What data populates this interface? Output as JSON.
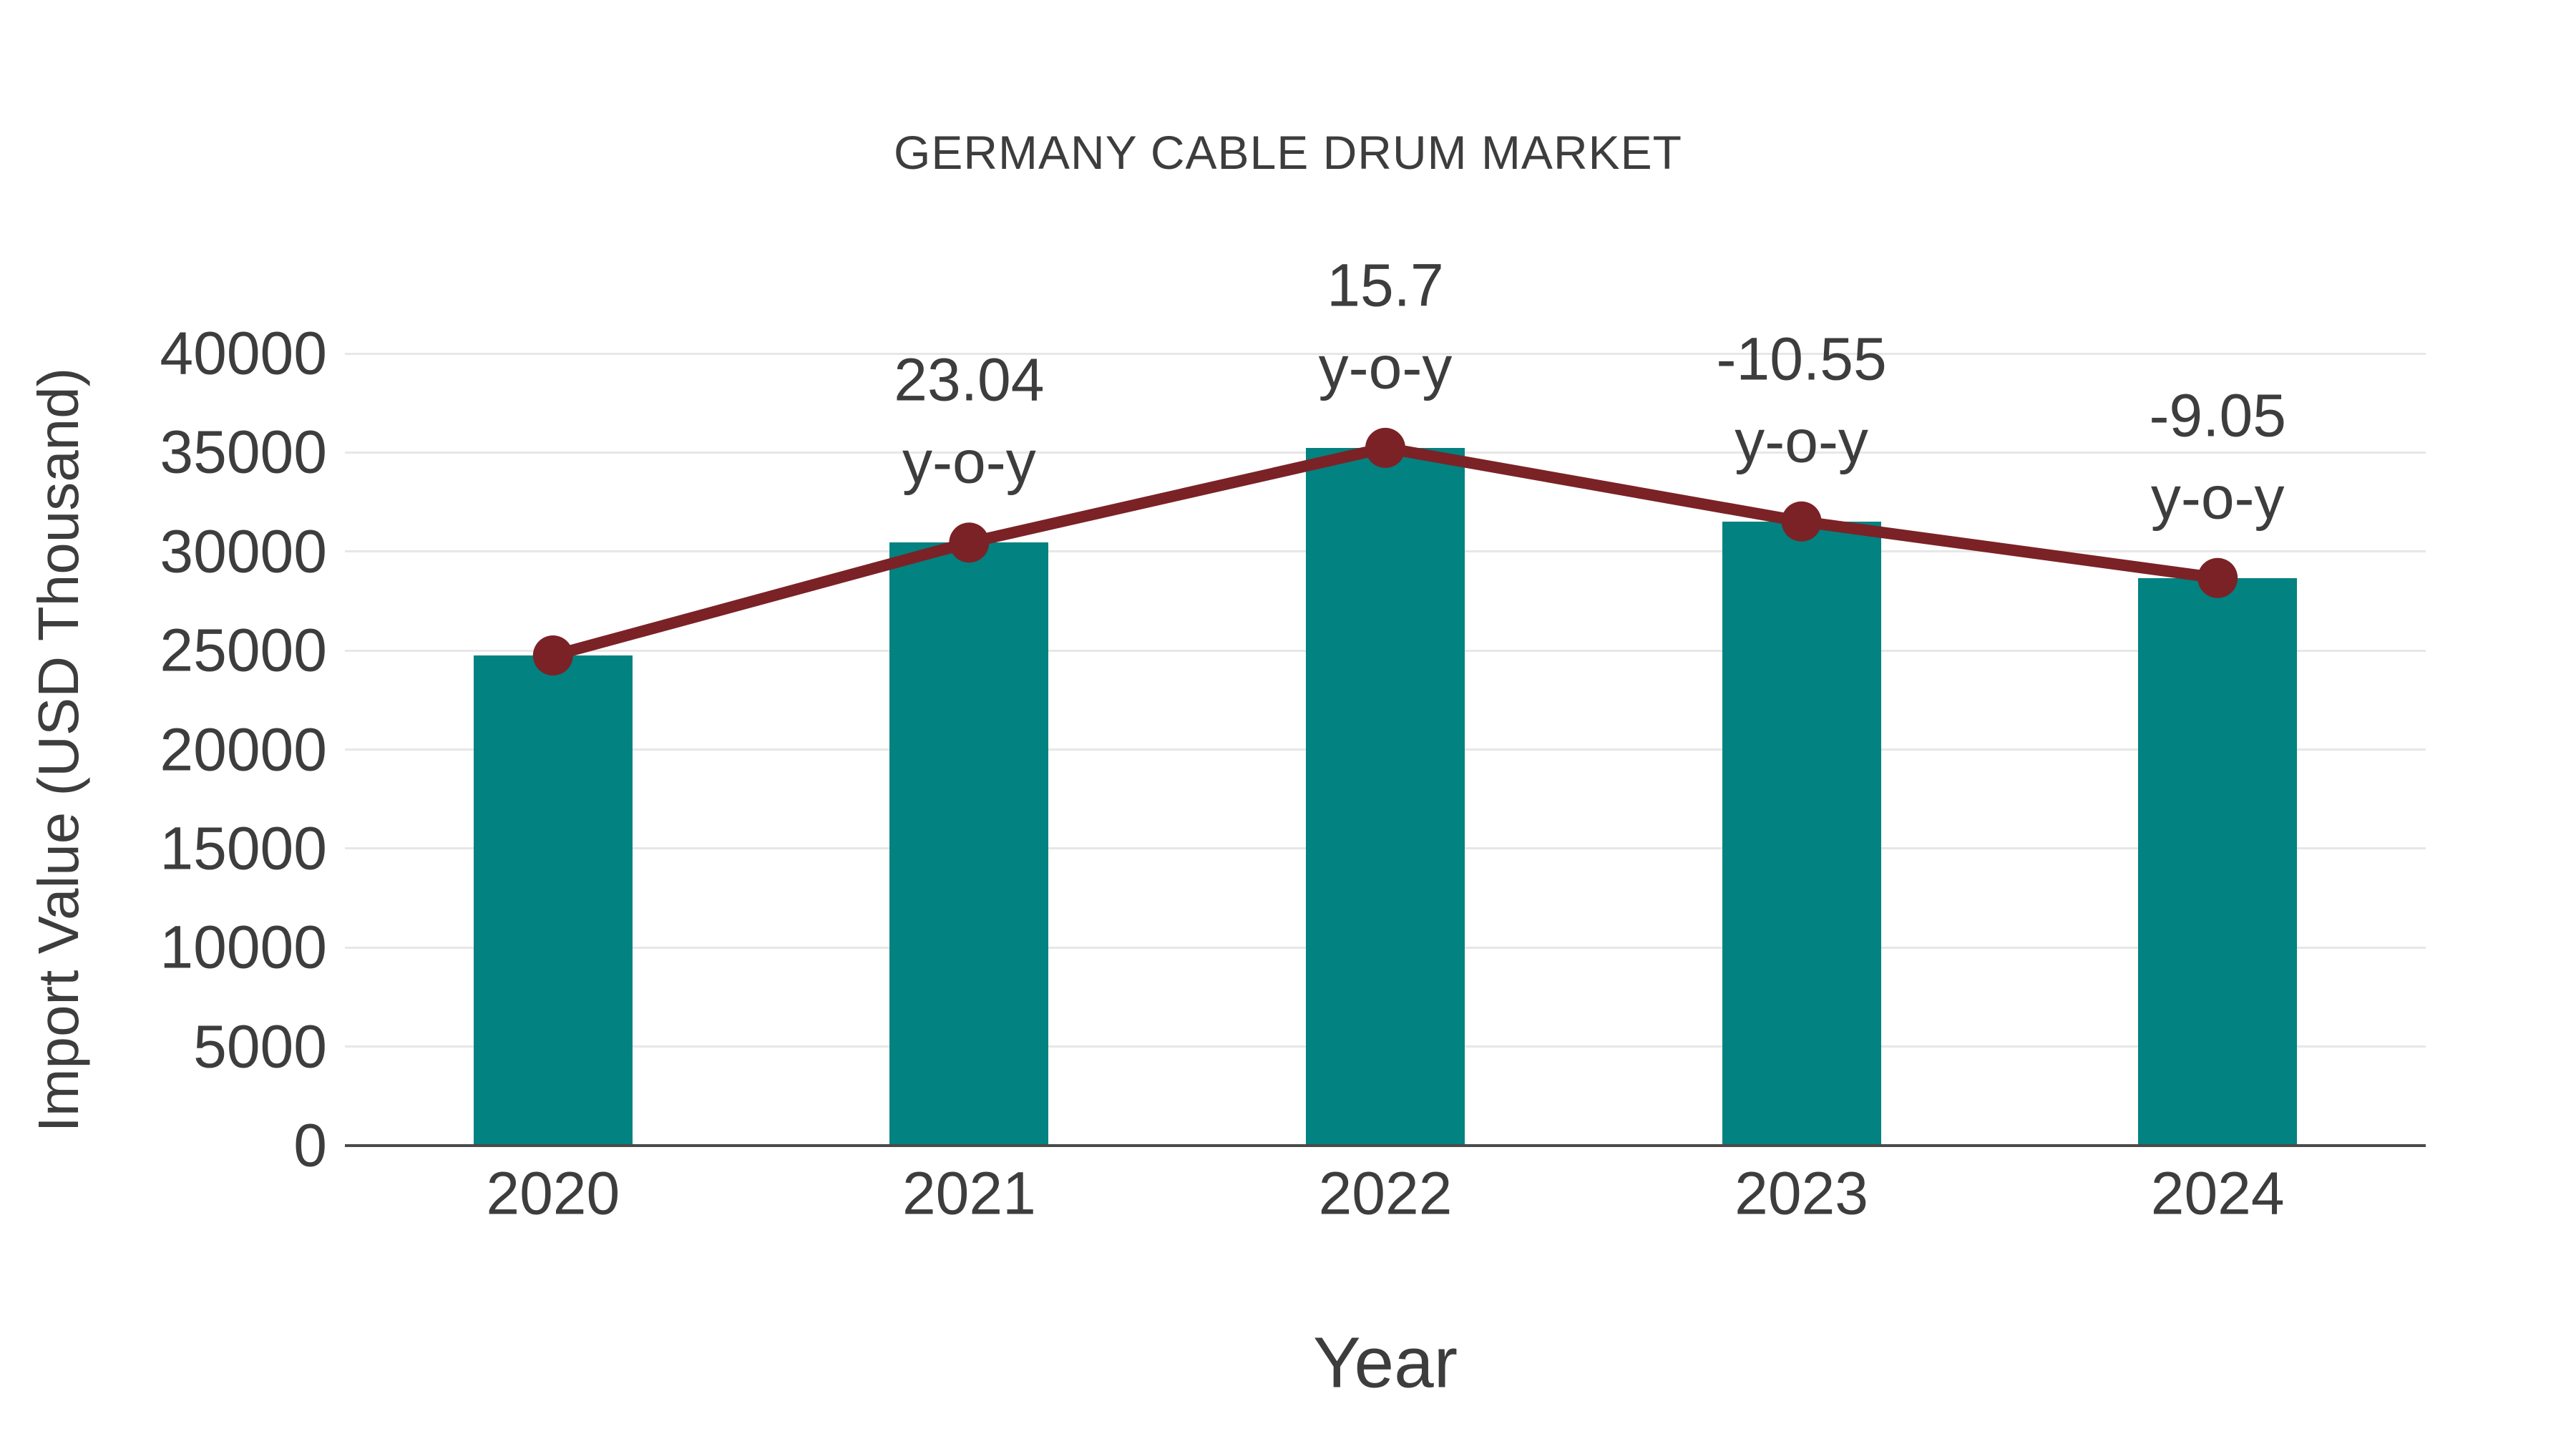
{
  "chart_data": {
    "type": "bar",
    "title": "GERMANY CABLE DRUM MARKET",
    "xlabel": "Year",
    "ylabel": "Import Value (USD Thousand)",
    "unit": "USD Thousand",
    "categories": [
      "2020",
      "2021",
      "2022",
      "2023",
      "2024"
    ],
    "series": [
      {
        "name": "Import Value bars",
        "type": "bar",
        "values": [
          24750,
          30452,
          35233,
          31516,
          28664
        ]
      },
      {
        "name": "Import Value trend line",
        "type": "line",
        "values": [
          24750,
          30452,
          35233,
          31516,
          28664
        ]
      }
    ],
    "annotations": [
      {
        "category": "2021",
        "value_label": "23.04",
        "suffix_label": "y-o-y",
        "yoy_percent": 23.04
      },
      {
        "category": "2022",
        "value_label": "15.7",
        "suffix_label": "y-o-y",
        "yoy_percent": 15.7
      },
      {
        "category": "2023",
        "value_label": "-10.55",
        "suffix_label": "y-o-y",
        "yoy_percent": -10.55
      },
      {
        "category": "2024",
        "value_label": "-9.05",
        "suffix_label": "y-o-y",
        "yoy_percent": -9.05
      }
    ],
    "yticks": [
      0,
      5000,
      10000,
      15000,
      20000,
      25000,
      30000,
      35000,
      40000
    ],
    "ylim": [
      0,
      40000
    ],
    "grid": "horizontal",
    "legend_position": "none",
    "colors": {
      "bar": "#028280",
      "line": "#7B2226",
      "marker": "#7B2226",
      "grid": "#e7e7e7",
      "axis": "#4a4a4a",
      "text": "#3d3d3d"
    }
  }
}
